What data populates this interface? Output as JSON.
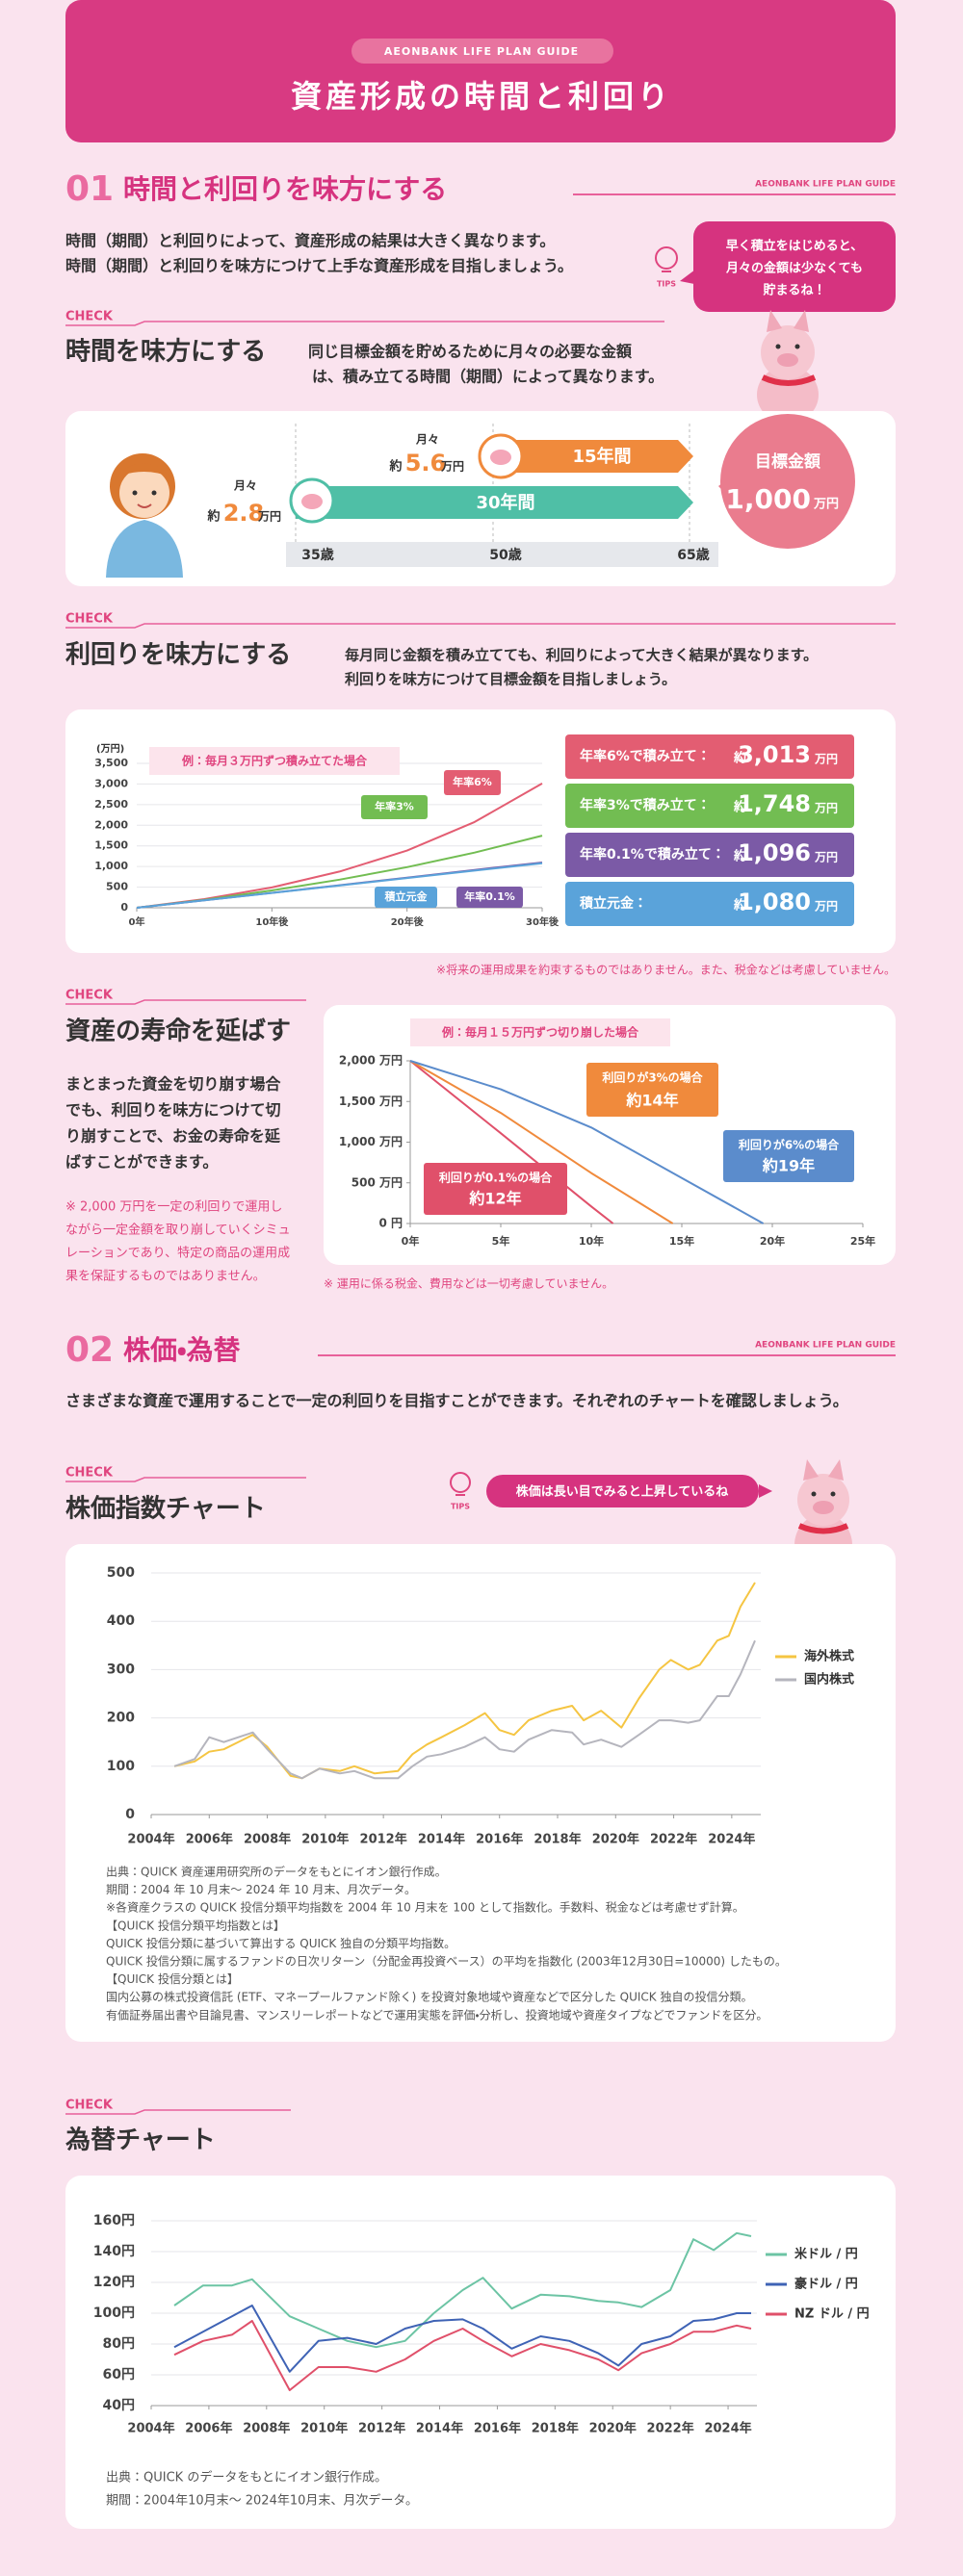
{
  "header": {
    "label": "AEONBANK LIFE PLAN GUIDE",
    "title": "資産形成の時間と利回り"
  },
  "section1": {
    "number": "01",
    "title": "時間と利回りを味方にする",
    "guide": "AEONBANK LIFE PLAN GUIDE",
    "intro": [
      "時間（期間）と利回りによって、資産形成の結果は大きく異なります。",
      "時間（期間）と利回りを味方につけて上手な資産形成を目指しましょう。"
    ],
    "tips": {
      "badge": "TIPS",
      "text": [
        "早く積立をはじめると、",
        "月々の金額は少なくても",
        "貯まるね！"
      ]
    }
  },
  "time": {
    "check": "CHECK",
    "title": "時間を味方にする",
    "desc": [
      "同じ目標金額を貯めるために月々の必要な金額",
      "は、積み立てる時間（期間）によって異なります。"
    ],
    "long": {
      "monthly": "月々",
      "prefix": "約",
      "amount": "2.8",
      "unit": "万円",
      "period": "30年間"
    },
    "short": {
      "monthly": "月々",
      "prefix": "約",
      "amount": "5.6",
      "unit": "万円",
      "period": "15年間"
    },
    "ages": [
      "35歳",
      "50歳",
      "65歳"
    ],
    "goal": {
      "label": "目標金額",
      "amount": "1,000",
      "unit": "万円"
    }
  },
  "yield": {
    "check": "CHECK",
    "title": "利回りを味方にする",
    "desc": [
      "毎月同じ金額を積み立てても、利回りによって大きく結果が異なります。",
      "利回りを味方につけて目標金額を目指しましょう。"
    ],
    "note": "※将来の運用成果を約束するものではありません。また、税金などは考慮していません。"
  },
  "longevity": {
    "check": "CHECK",
    "title": "資産の寿命を延ばす",
    "body": [
      "まとまった資金を切り崩す場合",
      "でも、利回りを味方につけて切",
      "り崩すことで、お金の寿命を延",
      "ばすことができます。"
    ],
    "note": [
      "※ 2,000 万円を一定の利回りで運用し",
      "ながら一定金額を取り崩していくシミュ",
      "レーションであり、特定の商品の運用成",
      "果を保証するものではありません。"
    ],
    "chart_note": "※ 運用に係る税金、費用などは一切考慮していません。"
  },
  "section2": {
    "number": "02",
    "title": "株価・為替",
    "guide": "AEONBANK LIFE PLAN GUIDE",
    "intro": "さまざまな資産で運用することで一定の利回りを目指すことができます。それぞれのチャートを確認しましょう。"
  },
  "stock": {
    "check": "CHECK",
    "title": "株価指数チャート",
    "tips": {
      "badge": "TIPS",
      "text": "株価は長い目でみると上昇しているね"
    },
    "notes": [
      "出典：QUICK 資産運用研究所のデータをもとにイオン銀行作成。",
      "期間：2004 年 10 月末〜 2024 年 10 月末、月次データ。",
      "※各資産クラスの QUICK 投信分類平均指数を 2004 年 10 月末を 100 として指数化。手数料、税金などは考慮せず計算。",
      "【QUICK 投信分類平均指数とは】",
      "QUICK 投信分類に基づいて算出する QUICK 独自の分類平均指数。",
      "QUICK 投信分類に属するファンドの日次リターン（分配金再投資ベース）の平均を指数化 (2003年12月30日=10000) したもの。",
      "【QUICK 投信分類とは】",
      "国内公募の株式投資信託 (ETF、マネープールファンド除く) を投資対象地域や資産などで区分した QUICK 独自の投信分類。",
      "有価証券届出書や目論見書、マンスリーレポートなどで運用実態を評価・分析し、投資地域や資産タイプなどでファンドを区分。"
    ]
  },
  "fx": {
    "check": "CHECK",
    "title": "為替チャート",
    "notes": [
      "出典：QUICK のデータをもとにイオン銀行作成。",
      "期間：2004年10月末〜 2024年10月末、月次データ。"
    ]
  },
  "chart_data": [
    {
      "type": "line",
      "annotation": "例：毎月３万円ずつ積み立てた場合",
      "ylabel": "(万円)",
      "x": [
        0,
        5,
        10,
        15,
        20,
        25,
        30
      ],
      "series": [
        {
          "name": "年率6%",
          "color": "#e35d72",
          "values": [
            0,
            209,
            492,
            877,
            1386,
            2079,
            3013
          ],
          "result": "年率6%で積み立て：",
          "value_label": "3,013"
        },
        {
          "name": "年率3%",
          "color": "#72bd52",
          "values": [
            0,
            194,
            419,
            681,
            985,
            1337,
            1748
          ],
          "result": "年率3%で積み立て：",
          "value_label": "1,748"
        },
        {
          "name": "年率0.1%",
          "color": "#7b5aa6",
          "values": [
            0,
            181,
            362,
            546,
            731,
            917,
            1096
          ],
          "result": "年率0.1%で積み立て：",
          "value_label": "1,096"
        },
        {
          "name": "積立元金",
          "color": "#5aa3da",
          "values": [
            0,
            180,
            360,
            540,
            720,
            900,
            1080
          ],
          "result": "積立元金：",
          "value_label": "1,080"
        }
      ],
      "result_prefix": "約",
      "result_unit": "万円",
      "xlim": [
        0,
        30
      ],
      "ylim": [
        0,
        3500
      ],
      "xticks": [
        {
          "value": 0,
          "label": "0年"
        },
        {
          "value": 10,
          "label": "10年後"
        },
        {
          "value": 20,
          "label": "20年後"
        },
        {
          "value": 30,
          "label": "30年後"
        }
      ],
      "yticks": [
        0,
        500,
        {
          "value": 1000,
          "label": "1,000"
        },
        {
          "value": 1500,
          "label": "1,500"
        },
        {
          "value": 2000,
          "label": "2,000"
        },
        {
          "value": 2500,
          "label": "2,500"
        },
        {
          "value": 3000,
          "label": "3,000"
        },
        {
          "value": 3500,
          "label": "3,500"
        }
      ],
      "grid": true
    },
    {
      "type": "line",
      "annotation": "例：毎月１５万円ずつ切り崩した場合",
      "series": [
        {
          "name": "利回りが0.1%の場合",
          "duration": "約12年",
          "color": "#e0506a",
          "x": [
            0,
            5,
            10,
            11.2
          ],
          "values": [
            2000,
            1110,
            210,
            0
          ]
        },
        {
          "name": "利回りが3%の場合",
          "duration": "約14年",
          "color": "#f08a3c",
          "x": [
            0,
            5,
            10,
            14.5
          ],
          "values": [
            2000,
            1360,
            620,
            0
          ]
        },
        {
          "name": "利回りが6%の場合",
          "duration": "約19年",
          "color": "#5b8ccc",
          "x": [
            0,
            5,
            10,
            15,
            19.5
          ],
          "values": [
            2000,
            1650,
            1180,
            560,
            0
          ]
        }
      ],
      "xlim": [
        0,
        25
      ],
      "ylim": [
        0,
        2000
      ],
      "xticks": [
        {
          "value": 0,
          "label": "0年"
        },
        {
          "value": 5,
          "label": "5年"
        },
        {
          "value": 10,
          "label": "10年"
        },
        {
          "value": 15,
          "label": "15年"
        },
        {
          "value": 20,
          "label": "20年"
        },
        {
          "value": 25,
          "label": "25年"
        }
      ],
      "yticks": [
        {
          "value": 0,
          "label": "0 円"
        },
        {
          "value": 500,
          "label": "500 万円"
        },
        {
          "value": 1000,
          "label": "1,000 万円"
        },
        {
          "value": 1500,
          "label": "1,500 万円"
        },
        {
          "value": 2000,
          "label": "2,000 万円"
        }
      ],
      "grid": false
    },
    {
      "type": "line",
      "x": [
        2004.8,
        2005.5,
        2006.0,
        2006.5,
        2007.5,
        2008.0,
        2008.8,
        2009.2,
        2009.8,
        2010.5,
        2011.0,
        2011.7,
        2012.5,
        2013.0,
        2013.5,
        2014.0,
        2014.8,
        2015.5,
        2016.0,
        2016.5,
        2017.0,
        2017.8,
        2018.5,
        2018.9,
        2019.5,
        2020.2,
        2020.8,
        2021.5,
        2021.9,
        2022.5,
        2022.9,
        2023.5,
        2023.9,
        2024.3,
        2024.8
      ],
      "series": [
        {
          "name": "海外株式",
          "color": "#f5c542",
          "values": [
            100,
            110,
            130,
            135,
            165,
            140,
            80,
            75,
            95,
            90,
            100,
            85,
            90,
            125,
            145,
            160,
            185,
            210,
            175,
            165,
            195,
            215,
            225,
            195,
            215,
            180,
            240,
            300,
            320,
            300,
            310,
            360,
            370,
            430,
            480
          ]
        },
        {
          "name": "国内株式",
          "color": "#b5b5bd",
          "values": [
            100,
            115,
            160,
            150,
            170,
            135,
            85,
            75,
            95,
            85,
            90,
            75,
            75,
            100,
            120,
            125,
            140,
            160,
            135,
            130,
            155,
            175,
            170,
            145,
            155,
            140,
            165,
            195,
            195,
            190,
            195,
            245,
            245,
            290,
            360
          ]
        }
      ],
      "xlim": [
        2004,
        2025
      ],
      "ylim": [
        0,
        500
      ],
      "xticks": [
        {
          "value": 2004,
          "label": "2004年"
        },
        {
          "value": 2006,
          "label": "2006年"
        },
        {
          "value": 2008,
          "label": "2008年"
        },
        {
          "value": 2010,
          "label": "2010年"
        },
        {
          "value": 2012,
          "label": "2012年"
        },
        {
          "value": 2014,
          "label": "2014年"
        },
        {
          "value": 2016,
          "label": "2016年"
        },
        {
          "value": 2018,
          "label": "2018年"
        },
        {
          "value": 2020,
          "label": "2020年"
        },
        {
          "value": 2022,
          "label": "2022年"
        },
        {
          "value": 2024,
          "label": "2024年"
        }
      ],
      "yticks": [
        0,
        100,
        200,
        300,
        400,
        500
      ],
      "grid": true,
      "legend": "right"
    },
    {
      "type": "line",
      "x": [
        2004.8,
        2005.8,
        2006.8,
        2007.5,
        2008.8,
        2009.8,
        2010.8,
        2011.8,
        2012.8,
        2013.8,
        2014.8,
        2015.5,
        2016.5,
        2017.5,
        2018.5,
        2019.5,
        2020.2,
        2021.0,
        2022.0,
        2022.8,
        2023.5,
        2024.3,
        2024.8
      ],
      "series": [
        {
          "name": "米ドル / 円",
          "color": "#6cc4a4",
          "values": [
            105,
            118,
            118,
            122,
            98,
            90,
            82,
            78,
            82,
            100,
            115,
            123,
            103,
            112,
            111,
            108,
            107,
            104,
            115,
            148,
            141,
            152,
            150
          ]
        },
        {
          "name": "豪ドル / 円",
          "color": "#3f63b5",
          "values": [
            78,
            88,
            98,
            105,
            62,
            82,
            84,
            80,
            90,
            95,
            96,
            90,
            77,
            85,
            82,
            74,
            66,
            80,
            85,
            95,
            96,
            100,
            100
          ]
        },
        {
          "name": "NZ ドル / 円",
          "color": "#e0506a",
          "values": [
            73,
            82,
            86,
            95,
            50,
            65,
            65,
            62,
            70,
            82,
            90,
            82,
            72,
            80,
            76,
            70,
            63,
            74,
            80,
            88,
            88,
            92,
            90
          ]
        }
      ],
      "xlim": [
        2004,
        2025
      ],
      "ylim": [
        40,
        160
      ],
      "xticks": [
        {
          "value": 2004,
          "label": "2004年"
        },
        {
          "value": 2006,
          "label": "2006年"
        },
        {
          "value": 2008,
          "label": "2008年"
        },
        {
          "value": 2010,
          "label": "2010年"
        },
        {
          "value": 2012,
          "label": "2012年"
        },
        {
          "value": 2014,
          "label": "2014年"
        },
        {
          "value": 2016,
          "label": "2016年"
        },
        {
          "value": 2018,
          "label": "2018年"
        },
        {
          "value": 2020,
          "label": "2020年"
        },
        {
          "value": 2022,
          "label": "2022年"
        },
        {
          "value": 2024,
          "label": "2024年"
        }
      ],
      "yticks": [
        {
          "value": 40,
          "label": "40円"
        },
        {
          "value": 60,
          "label": "60円"
        },
        {
          "value": 80,
          "label": "80円"
        },
        {
          "value": 100,
          "label": "100円"
        },
        {
          "value": 120,
          "label": "120円"
        },
        {
          "value": 140,
          "label": "140円"
        },
        {
          "value": 160,
          "label": "160円"
        }
      ],
      "grid": true,
      "legend": "right"
    }
  ]
}
